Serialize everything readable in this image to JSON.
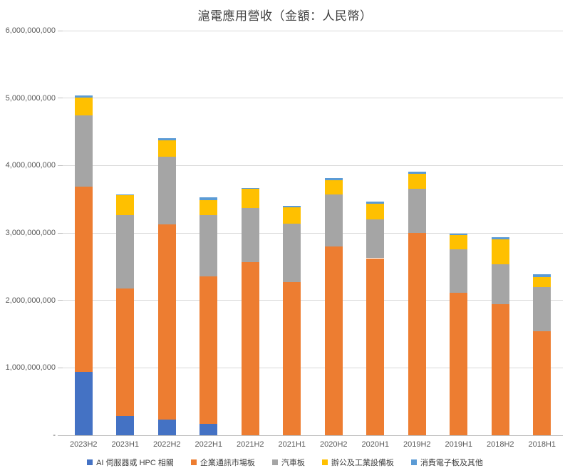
{
  "chart_data": {
    "type": "bar",
    "stacked": true,
    "title": "滬電應用營收（金額：人民幣）",
    "legend_position": "bottom",
    "grid": true,
    "categories": [
      "2023H2",
      "2023H1",
      "2022H2",
      "2022H1",
      "2021H2",
      "2021H1",
      "2020H2",
      "2020H1",
      "2019H2",
      "2019H1",
      "2018H2",
      "2018H1"
    ],
    "series": [
      {
        "name": "AI 伺服器或 HPC 相關",
        "color": "#4472C4",
        "values": [
          940000000,
          285000000,
          230000000,
          170000000,
          0,
          0,
          0,
          0,
          0,
          0,
          0,
          0
        ]
      },
      {
        "name": "企業通訊市場板",
        "color": "#ED7D31",
        "values": [
          2750000000,
          1890000000,
          2900000000,
          2190000000,
          2570000000,
          2270000000,
          2800000000,
          2625000000,
          3000000000,
          2110000000,
          1940000000,
          1540000000
        ]
      },
      {
        "name": "汽車板",
        "color": "#A5A5A5",
        "values": [
          1050000000,
          1090000000,
          1000000000,
          900000000,
          800000000,
          870000000,
          770000000,
          575000000,
          660000000,
          645000000,
          600000000,
          660000000
        ]
      },
      {
        "name": "辦公及工業設備板",
        "color": "#FFC000",
        "values": [
          270000000,
          290000000,
          245000000,
          230000000,
          280000000,
          240000000,
          210000000,
          235000000,
          220000000,
          210000000,
          360000000,
          150000000
        ]
      },
      {
        "name": "消費電子板及其他",
        "color": "#5B9BD5",
        "values": [
          30000000,
          20000000,
          30000000,
          35000000,
          20000000,
          20000000,
          35000000,
          30000000,
          30000000,
          20000000,
          35000000,
          35000000
        ]
      }
    ],
    "y_axis": {
      "min": 0,
      "max": 6000000000,
      "ticks": [
        {
          "value": 0,
          "label": "-"
        },
        {
          "value": 1000000000,
          "label": "1,000,000,000"
        },
        {
          "value": 2000000000,
          "label": "2,000,000,000"
        },
        {
          "value": 3000000000,
          "label": "3,000,000,000"
        },
        {
          "value": 4000000000,
          "label": "4,000,000,000"
        },
        {
          "value": 5000000000,
          "label": "5,000,000,000"
        },
        {
          "value": 6000000000,
          "label": "6,000,000,000"
        }
      ]
    }
  },
  "colors": {
    "gridline": "#D9D9D9",
    "axis_line": "#BFBFBF",
    "axis_text": "#595959",
    "title_text": "#404040",
    "background": "#FFFFFF"
  }
}
